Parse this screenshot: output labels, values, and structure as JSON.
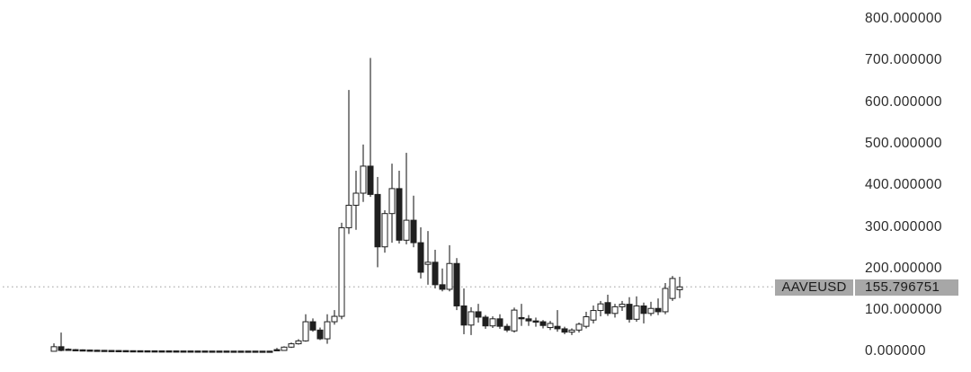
{
  "badge": {
    "symbol": "AAVEUSD",
    "value": "155.796751"
  },
  "y_axis": {
    "labels": [
      "800.000000",
      "700.000000",
      "600.000000",
      "500.000000",
      "400.000000",
      "300.000000",
      "200.000000",
      "100.000000",
      "0.000000"
    ],
    "tick_prices": [
      800,
      700,
      600,
      500,
      400,
      300,
      200,
      100,
      0
    ]
  },
  "colors": {
    "background": "#ffffff",
    "candle_up_fill": "#ffffff",
    "candle_down_fill": "#1f1f1f",
    "candle_stroke": "#1f1f1f",
    "axis_text": "#2b2b2b",
    "badge_bg": "#a7a7a7",
    "badge_text": "#1c1c1c",
    "price_line": "#b3b3b3"
  },
  "chart_data": {
    "type": "candlestick",
    "symbol": "AAVEUSD",
    "last_price": 155.796751,
    "ylim": [
      0,
      800
    ],
    "y_ticks": [
      0,
      100,
      200,
      300,
      400,
      500,
      600,
      700,
      800
    ],
    "grid": false,
    "legend": "none",
    "x_axis_visible": false,
    "last_price_line": {
      "style": "dotted",
      "price": 155.796751
    },
    "candles_ohlc": [
      [
        1,
        20,
        0.5,
        12
      ],
      [
        12,
        46,
        1,
        3
      ],
      [
        6,
        8,
        3.5,
        4.5
      ],
      [
        5,
        6.5,
        3,
        4
      ],
      [
        4.5,
        5.5,
        2.8,
        3.5
      ],
      [
        4,
        5,
        2.5,
        3.2
      ],
      [
        3.6,
        4.6,
        2.3,
        3
      ],
      [
        3.3,
        4.2,
        2.1,
        2.8
      ],
      [
        3,
        3.9,
        2,
        2.6
      ],
      [
        2.8,
        3.6,
        1.9,
        2.4
      ],
      [
        2.6,
        3.3,
        1.8,
        2.2
      ],
      [
        2.4,
        3.1,
        1.7,
        2.1
      ],
      [
        2.3,
        2.9,
        1.6,
        2
      ],
      [
        2.2,
        2.8,
        1.5,
        1.9
      ],
      [
        2.1,
        2.7,
        1.5,
        1.9
      ],
      [
        2,
        2.6,
        1.4,
        1.8
      ],
      [
        2,
        2.5,
        1.4,
        1.7
      ],
      [
        1.9,
        2.4,
        1.3,
        1.7
      ],
      [
        1.8,
        2.3,
        1.3,
        1.6
      ],
      [
        1.8,
        2.2,
        1.2,
        1.6
      ],
      [
        1.7,
        2.2,
        1.2,
        1.5
      ],
      [
        1.7,
        2.1,
        1.2,
        1.5
      ],
      [
        1.6,
        2.1,
        1.1,
        1.5
      ],
      [
        1.6,
        2,
        1.1,
        1.4
      ],
      [
        1.6,
        2,
        1.1,
        1.4
      ],
      [
        1.5,
        2,
        1.1,
        1.4
      ],
      [
        1.5,
        1.9,
        1,
        1.4
      ],
      [
        1.5,
        1.9,
        1,
        1.3
      ],
      [
        1.5,
        1.9,
        1,
        1.3
      ],
      [
        1.4,
        1.8,
        1,
        1.3
      ],
      [
        1.4,
        1.8,
        1,
        1.3
      ],
      [
        5,
        9,
        2,
        3
      ],
      [
        3,
        13,
        2.5,
        11
      ],
      [
        11,
        22,
        9,
        19
      ],
      [
        19,
        30,
        17,
        26
      ],
      [
        26,
        90,
        24,
        72
      ],
      [
        72,
        80,
        48,
        52
      ],
      [
        52,
        58,
        28,
        31
      ],
      [
        31,
        90,
        19,
        72
      ],
      [
        72,
        100,
        65,
        85
      ],
      [
        85,
        310,
        78,
        298
      ],
      [
        298,
        629,
        283,
        352
      ],
      [
        352,
        435,
        293,
        381
      ],
      [
        381,
        498,
        360,
        446
      ],
      [
        446,
        706,
        372,
        378
      ],
      [
        378,
        420,
        203,
        252
      ],
      [
        252,
        340,
        238,
        332
      ],
      [
        332,
        452,
        262,
        392
      ],
      [
        392,
        435,
        260,
        268
      ],
      [
        268,
        478,
        258,
        316
      ],
      [
        316,
        375,
        251,
        262
      ],
      [
        262,
        299,
        176,
        191
      ],
      [
        210,
        290,
        161,
        215
      ],
      [
        215,
        245,
        152,
        161
      ],
      [
        161,
        200,
        145,
        150
      ],
      [
        150,
        256,
        145,
        212
      ],
      [
        212,
        225,
        100,
        110
      ],
      [
        110,
        152,
        42,
        64
      ],
      [
        64,
        107,
        40,
        96
      ],
      [
        96,
        115,
        70,
        83
      ],
      [
        83,
        88,
        55,
        62
      ],
      [
        62,
        85,
        57,
        79
      ],
      [
        79,
        90,
        55,
        61
      ],
      [
        61,
        67,
        47,
        52
      ],
      [
        50,
        106,
        46,
        100
      ],
      [
        82,
        115,
        62,
        79
      ],
      [
        79,
        88,
        62,
        74
      ],
      [
        74,
        82,
        60,
        72
      ],
      [
        72,
        76,
        56,
        63
      ],
      [
        58,
        74,
        52,
        68
      ],
      [
        61,
        100,
        48,
        55
      ],
      [
        55,
        60,
        42,
        47
      ],
      [
        47,
        56,
        40,
        52
      ],
      [
        52,
        70,
        46,
        66
      ],
      [
        61,
        96,
        56,
        84
      ],
      [
        76,
        111,
        68,
        99
      ],
      [
        99,
        122,
        85,
        115
      ],
      [
        118,
        137,
        86,
        92
      ],
      [
        92,
        115,
        82,
        108
      ],
      [
        108,
        122,
        98,
        114
      ],
      [
        114,
        131,
        70,
        78
      ],
      [
        78,
        133,
        72,
        110
      ],
      [
        110,
        118,
        68,
        92
      ],
      [
        92,
        120,
        86,
        104
      ],
      [
        104,
        128,
        88,
        96
      ],
      [
        96,
        165,
        90,
        152
      ],
      [
        128,
        182,
        122,
        176
      ],
      [
        149,
        180,
        129,
        155.796751
      ]
    ]
  }
}
